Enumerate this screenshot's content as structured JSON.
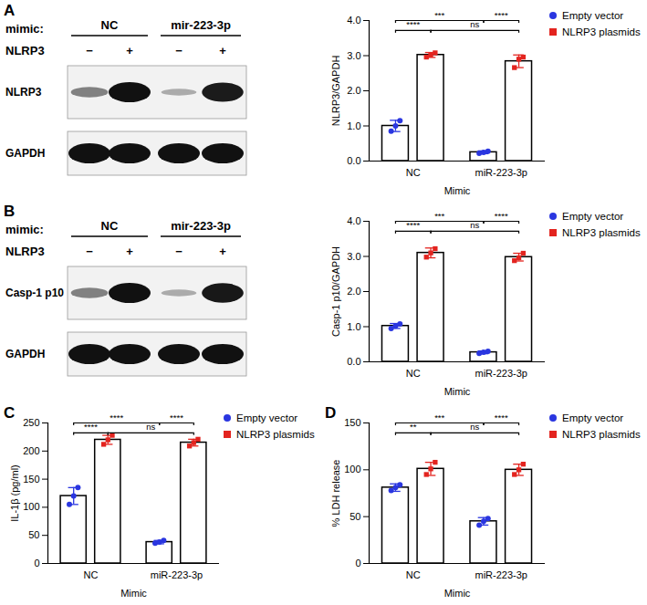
{
  "chart_data": [
    {
      "panel": "A",
      "type": "bar",
      "ylabel": "NLRP3/GAPDH",
      "xlabel": "Mimic",
      "categories": [
        "NC",
        "miR-223-3p"
      ],
      "ylim": [
        0,
        4
      ],
      "yticks": [
        0,
        1,
        2,
        3,
        4
      ],
      "series": [
        {
          "name": "Empty vector",
          "color": "#2a36e0",
          "marker": "circle",
          "values": [
            1.0,
            0.25
          ],
          "errors": [
            0.16,
            0.04
          ],
          "points": [
            [
              0.85,
              1.0,
              1.15
            ],
            [
              0.22,
              0.25,
              0.28
            ]
          ]
        },
        {
          "name": "NLRP3 plasmids",
          "color": "#e3241f",
          "marker": "square",
          "values": [
            3.02,
            2.84
          ],
          "errors": [
            0.07,
            0.18
          ],
          "points": [
            [
              2.96,
              3.02,
              3.08
            ],
            [
              2.66,
              2.9,
              2.96
            ]
          ]
        }
      ],
      "brackets": [
        [
          {
            "from": [
              "NC",
              "Empty vector"
            ],
            "to": [
              "miR-223-3p",
              "Empty vector"
            ],
            "label": "***"
          },
          {
            "from": [
              "miR-223-3p",
              "Empty vector"
            ],
            "to": [
              "miR-223-3p",
              "NLRP3 plasmids"
            ],
            "label": "****"
          }
        ],
        [
          {
            "from": [
              "NC",
              "Empty vector"
            ],
            "to": [
              "NC",
              "NLRP3 plasmids"
            ],
            "label": "****"
          },
          {
            "from": [
              "NC",
              "NLRP3 plasmids"
            ],
            "to": [
              "miR-223-3p",
              "NLRP3 plasmids"
            ],
            "label": "ns"
          }
        ]
      ],
      "blot": {
        "header_label": "mimic:",
        "groups": [
          "NC",
          "mir-223-3p"
        ],
        "row_label": "NLRP3",
        "row_marks": [
          "−",
          "+",
          "−",
          "+"
        ],
        "bands": [
          "NLRP3",
          "GAPDH"
        ]
      }
    },
    {
      "panel": "B",
      "type": "bar",
      "ylabel": "Casp-1 p10/GAPDH",
      "xlabel": "Mimic",
      "categories": [
        "NC",
        "miR-223-3p"
      ],
      "ylim": [
        0,
        4
      ],
      "yticks": [
        0,
        1,
        2,
        3,
        4
      ],
      "series": [
        {
          "name": "Empty vector",
          "color": "#2a36e0",
          "marker": "circle",
          "values": [
            1.02,
            0.27
          ],
          "errors": [
            0.07,
            0.04
          ],
          "points": [
            [
              0.95,
              1.02,
              1.08
            ],
            [
              0.24,
              0.27,
              0.3
            ]
          ]
        },
        {
          "name": "NLRP3 plasmids",
          "color": "#e3241f",
          "marker": "square",
          "values": [
            3.1,
            2.98
          ],
          "errors": [
            0.14,
            0.11
          ],
          "points": [
            [
              2.98,
              3.1,
              3.22
            ],
            [
              2.88,
              2.96,
              3.09
            ]
          ]
        }
      ],
      "brackets": [
        [
          {
            "from": [
              "NC",
              "Empty vector"
            ],
            "to": [
              "miR-223-3p",
              "Empty vector"
            ],
            "label": "***"
          },
          {
            "from": [
              "miR-223-3p",
              "Empty vector"
            ],
            "to": [
              "miR-223-3p",
              "NLRP3 plasmids"
            ],
            "label": "****"
          }
        ],
        [
          {
            "from": [
              "NC",
              "Empty vector"
            ],
            "to": [
              "NC",
              "NLRP3 plasmids"
            ],
            "label": "****"
          },
          {
            "from": [
              "NC",
              "NLRP3 plasmids"
            ],
            "to": [
              "miR-223-3p",
              "NLRP3 plasmids"
            ],
            "label": "ns"
          }
        ]
      ],
      "blot": {
        "header_label": "mimic:",
        "groups": [
          "NC",
          "mir-223-3p"
        ],
        "row_label": "NLRP3",
        "row_marks": [
          "−",
          "+",
          "−",
          "+"
        ],
        "bands": [
          "Casp-1 p10",
          "GAPDH"
        ]
      }
    },
    {
      "panel": "C",
      "type": "bar",
      "ylabel": "IL-1β (pg/ml)",
      "xlabel": "Mimic",
      "categories": [
        "NC",
        "miR-223-3p"
      ],
      "ylim": [
        0,
        250
      ],
      "yticks": [
        0,
        50,
        100,
        150,
        200,
        250
      ],
      "series": [
        {
          "name": "Empty vector",
          "color": "#2a36e0",
          "marker": "circle",
          "values": [
            120,
            38
          ],
          "errors": [
            15,
            3
          ],
          "points": [
            [
              105,
              120,
              135
            ],
            [
              36,
              38,
              41
            ]
          ]
        },
        {
          "name": "NLRP3 plasmids",
          "color": "#e3241f",
          "marker": "square",
          "values": [
            220,
            215
          ],
          "errors": [
            8,
            6
          ],
          "points": [
            [
              212,
              220,
              228
            ],
            [
              209,
              215,
              221
            ]
          ]
        }
      ],
      "brackets": [
        [
          {
            "from": [
              "NC",
              "Empty vector"
            ],
            "to": [
              "miR-223-3p",
              "Empty vector"
            ],
            "label": "****"
          },
          {
            "from": [
              "miR-223-3p",
              "Empty vector"
            ],
            "to": [
              "miR-223-3p",
              "NLRP3 plasmids"
            ],
            "label": "****"
          }
        ],
        [
          {
            "from": [
              "NC",
              "Empty vector"
            ],
            "to": [
              "NC",
              "NLRP3 plasmids"
            ],
            "label": "****"
          },
          {
            "from": [
              "NC",
              "NLRP3 plasmids"
            ],
            "to": [
              "miR-223-3p",
              "NLRP3 plasmids"
            ],
            "label": "ns"
          }
        ]
      ]
    },
    {
      "panel": "D",
      "type": "bar",
      "ylabel": "% LDH release",
      "xlabel": "Mimic",
      "categories": [
        "NC",
        "miR-223-3p"
      ],
      "ylim": [
        0,
        150
      ],
      "yticks": [
        0,
        50,
        100,
        150
      ],
      "series": [
        {
          "name": "Empty vector",
          "color": "#2a36e0",
          "marker": "circle",
          "values": [
            81,
            45
          ],
          "errors": [
            4,
            4
          ],
          "points": [
            [
              78,
              81,
              84
            ],
            [
              41,
              45,
              48
            ]
          ]
        },
        {
          "name": "NLRP3 plasmids",
          "color": "#e3241f",
          "marker": "square",
          "values": [
            101,
            100
          ],
          "errors": [
            7,
            6
          ],
          "points": [
            [
              95,
              101,
              108
            ],
            [
              95,
              100,
              106
            ]
          ]
        }
      ],
      "brackets": [
        [
          {
            "from": [
              "NC",
              "Empty vector"
            ],
            "to": [
              "miR-223-3p",
              "Empty vector"
            ],
            "label": "***"
          },
          {
            "from": [
              "miR-223-3p",
              "Empty vector"
            ],
            "to": [
              "miR-223-3p",
              "NLRP3 plasmids"
            ],
            "label": "****"
          }
        ],
        [
          {
            "from": [
              "NC",
              "Empty vector"
            ],
            "to": [
              "NC",
              "NLRP3 plasmids"
            ],
            "label": "**"
          },
          {
            "from": [
              "NC",
              "NLRP3 plasmids"
            ],
            "to": [
              "miR-223-3p",
              "NLRP3 plasmids"
            ],
            "label": "ns"
          }
        ]
      ]
    }
  ]
}
